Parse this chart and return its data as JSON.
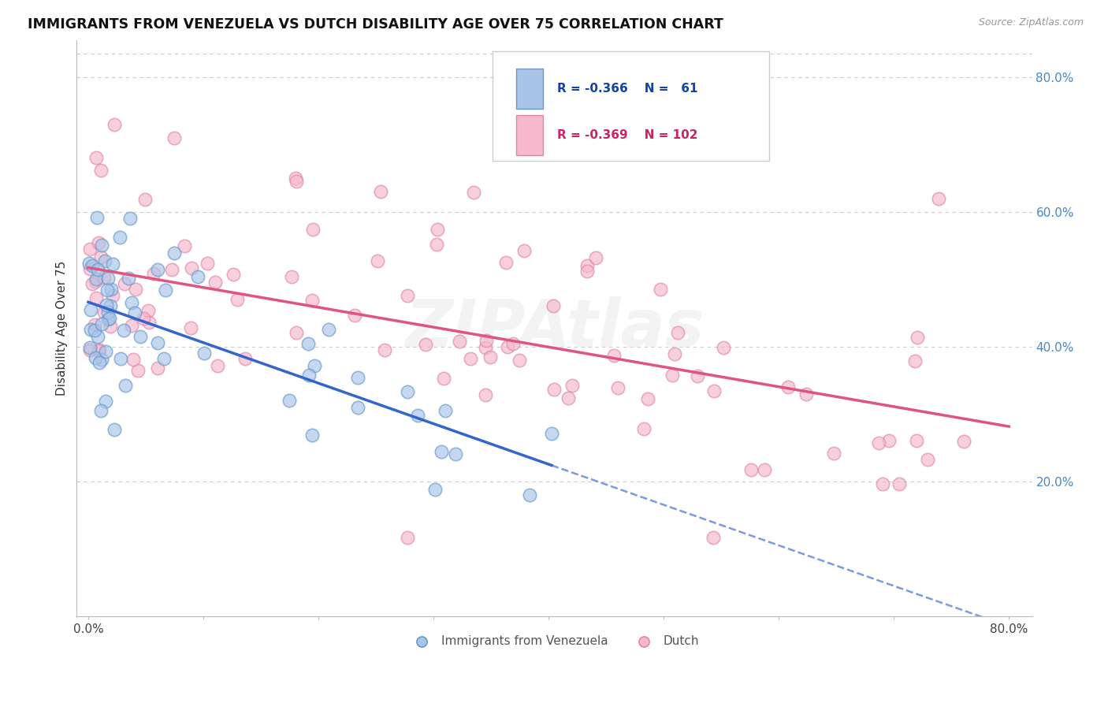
{
  "title": "IMMIGRANTS FROM VENEZUELA VS DUTCH DISABILITY AGE OVER 75 CORRELATION CHART",
  "source": "Source: ZipAtlas.com",
  "ylabel": "Disability Age Over 75",
  "color_blue_fill": "#A8C4E8",
  "color_blue_edge": "#6699CC",
  "color_pink_fill": "#F5B8CC",
  "color_pink_edge": "#E088A8",
  "color_trendline_blue": "#3366CC",
  "color_trendline_pink": "#E05580",
  "color_blue_text": "#1144AA",
  "color_pink_text": "#CC2266",
  "color_ytick": "#4488CC",
  "background_color": "#FFFFFF",
  "grid_color": "#CCCCCC",
  "legend_r1": "-0.366",
  "legend_n1": "61",
  "legend_r2": "-0.369",
  "legend_n2": "102",
  "watermark": "ZIPAtlas",
  "marker_size": 140,
  "marker_alpha": 0.65
}
